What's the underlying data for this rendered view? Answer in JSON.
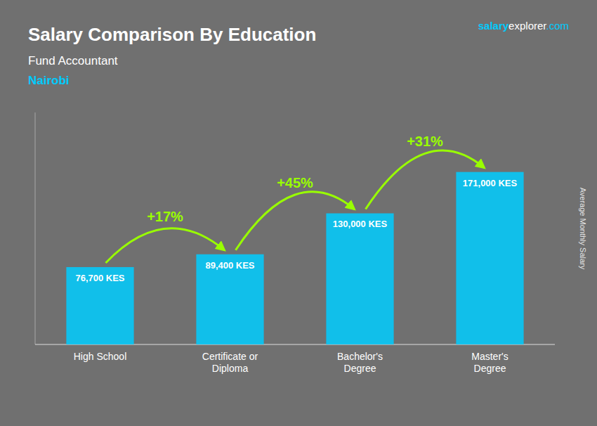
{
  "chart_data": {
    "type": "bar",
    "title": "Salary Comparison By Education",
    "subtitle": "Fund Accountant",
    "location": "Nairobi",
    "brand": [
      "salary",
      "explorer",
      ".com"
    ],
    "ylabel": "Average Monthly Salary",
    "categories": [
      "High School",
      "Certificate or\nDiploma",
      "Bachelor's\nDegree",
      "Master's\nDegree"
    ],
    "values": [
      76700,
      89400,
      130000,
      171000
    ],
    "value_labels": [
      "76,700 KES",
      "89,400 KES",
      "130,000 KES",
      "171,000 KES"
    ],
    "data_labels": true,
    "annotations": [
      "+17%",
      "+45%",
      "+31%"
    ],
    "color": "#00CCFF",
    "ylim": [
      0,
      230000
    ],
    "tick_labels": "x",
    "grid": false
  }
}
